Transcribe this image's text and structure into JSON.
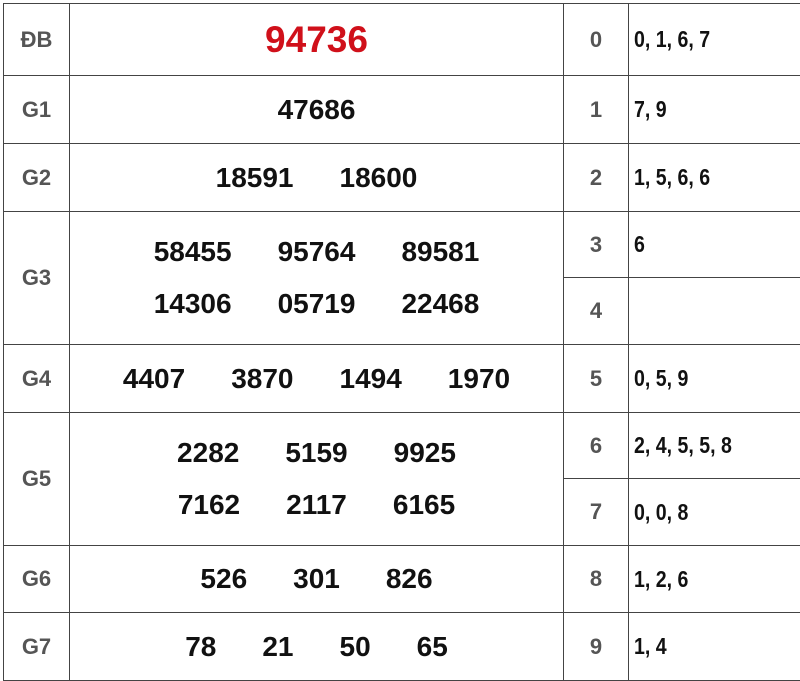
{
  "prizes": [
    {
      "label": "ĐB",
      "lines": [
        [
          "94736"
        ]
      ]
    },
    {
      "label": "G1",
      "lines": [
        [
          "47686"
        ]
      ]
    },
    {
      "label": "G2",
      "lines": [
        [
          "18591",
          "18600"
        ]
      ]
    },
    {
      "label": "G3",
      "lines": [
        [
          "58455",
          "95764",
          "89581"
        ],
        [
          "14306",
          "05719",
          "22468"
        ]
      ]
    },
    {
      "label": "G4",
      "lines": [
        [
          "4407",
          "3870",
          "1494",
          "1970"
        ]
      ]
    },
    {
      "label": "G5",
      "lines": [
        [
          "2282",
          "5159",
          "9925"
        ],
        [
          "7162",
          "2117",
          "6165"
        ]
      ]
    },
    {
      "label": "G6",
      "lines": [
        [
          "526",
          "301",
          "826"
        ]
      ]
    },
    {
      "label": "G7",
      "lines": [
        [
          "78",
          "21",
          "50",
          "65"
        ]
      ]
    }
  ],
  "tails": [
    {
      "digit": "0",
      "values": "0, 1, 6, 7"
    },
    {
      "digit": "1",
      "values": "7, 9"
    },
    {
      "digit": "2",
      "values": "1, 5, 6, 6"
    },
    {
      "digit": "3",
      "values": "6"
    },
    {
      "digit": "4",
      "values": ""
    },
    {
      "digit": "5",
      "values": "0, 5, 9"
    },
    {
      "digit": "6",
      "values": "2, 4, 5, 5, 8"
    },
    {
      "digit": "7",
      "values": "0, 0, 8"
    },
    {
      "digit": "8",
      "values": "1, 2, 6"
    },
    {
      "digit": "9",
      "values": "1, 4"
    }
  ],
  "colors": {
    "special": "#d0101a",
    "label": "#555555",
    "text": "#111111",
    "border": "#444444"
  }
}
